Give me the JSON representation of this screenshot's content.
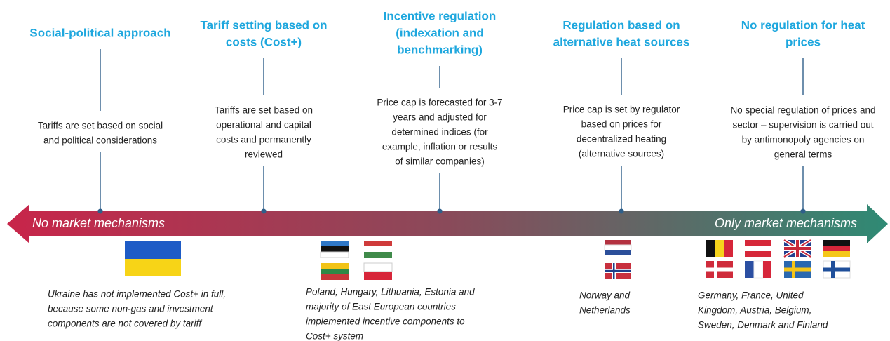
{
  "columns": [
    {
      "title_lines": [
        "Social-political approach"
      ],
      "description_lines": [
        "Tariffs are set based on social",
        "and political considerations"
      ],
      "caption_lines": [
        "Ukraine has not implemented Cost+  in full,",
        "because some non-gas and investment",
        "components are not covered by tariff"
      ]
    },
    {
      "title_lines": [
        "Tariff setting based on",
        "costs (Cost+)"
      ],
      "description_lines": [
        "Tariffs are set based on",
        "operational and capital",
        "costs and permanently",
        "reviewed"
      ],
      "caption_lines": [
        "Poland, Hungary, Lithuania, Estonia and",
        "majority of East European countries",
        "implemented incentive components to",
        "Cost+ system"
      ]
    },
    {
      "title_lines": [
        "Incentive regulation",
        "(indexation and",
        "benchmarking)"
      ],
      "description_lines": [
        "Price cap is forecasted for 3-7",
        "years and adjusted  for",
        "determined indices (for",
        "example, inflation or results",
        "of similar companies)"
      ],
      "caption_lines": []
    },
    {
      "title_lines": [
        "Regulation based on",
        "alternative heat sources"
      ],
      "description_lines": [
        "Price cap is set by regulator",
        "based on prices for",
        "decentralized heating",
        "(alternative sources)"
      ],
      "caption_lines": [
        "Norway and",
        "Netherlands"
      ]
    },
    {
      "title_lines": [
        "No regulation for heat",
        "prices"
      ],
      "description_lines": [
        "No special regulation of prices and",
        "sector – supervision is carried out",
        "by antimonopoly agencies on",
        "general terms"
      ],
      "caption_lines": [
        "Germany, France, United",
        "Kingdom, Austria, Belgium,",
        "Sweden, Denmark and Finland"
      ]
    }
  ],
  "arrow": {
    "left_label": "No market mechanisms",
    "right_label": "Only market mechanisms"
  }
}
